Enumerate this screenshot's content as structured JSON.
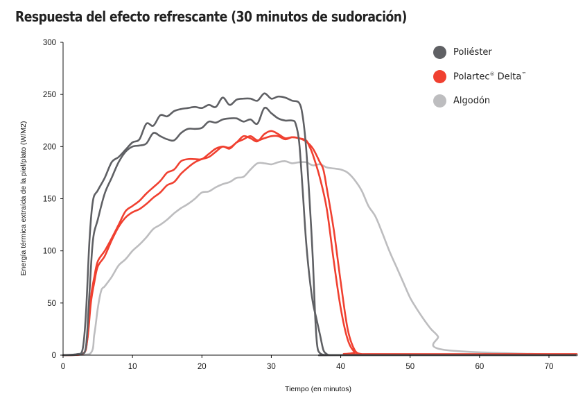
{
  "chart_data": {
    "type": "line",
    "title": "Respuesta del efecto refrescante (30 minutos de sudoración)",
    "xlabel": "Tiempo (en minutos)",
    "ylabel": "Energía térmica extraída de la piel/plato (W/M2)",
    "xlim": [
      0,
      74
    ],
    "ylim": [
      0,
      300
    ],
    "xticks": [
      "0",
      "10",
      "20",
      "30",
      "40",
      "50",
      "60",
      "70"
    ],
    "yticks": [
      "0",
      "50",
      "100",
      "150",
      "200",
      "250",
      "300"
    ],
    "legend_position": "top-right",
    "legend": [
      {
        "label": "Poliéster",
        "color": "#5f6064"
      },
      {
        "label": "Polartec",
        "sup1": "®",
        "label2": " Delta",
        "sup2": "™",
        "color": "#f04030"
      },
      {
        "label": "Algodón",
        "color": "#bdbdbf"
      }
    ],
    "series": [
      {
        "name": "Poliéster (1)",
        "color": "#5f6064",
        "x": [
          0,
          2,
          2.8,
          3.3,
          3.8,
          4.3,
          5,
          6,
          7,
          8,
          9,
          10,
          11,
          12,
          13,
          14,
          15,
          16,
          17,
          18,
          19,
          20,
          21,
          22,
          23,
          24,
          25,
          26,
          27,
          28,
          29,
          30,
          31,
          32,
          33,
          34,
          34.5,
          35,
          35.5,
          36,
          36.3,
          36.6,
          37,
          38,
          40,
          74
        ],
        "y": [
          0,
          1,
          5,
          40,
          110,
          148,
          158,
          170,
          185,
          190,
          197,
          204,
          207,
          222,
          220,
          230,
          229,
          234,
          236,
          237,
          238,
          237,
          240,
          238,
          247,
          240,
          245,
          246,
          246,
          244,
          251,
          246,
          248,
          247,
          244,
          242,
          230,
          200,
          150,
          90,
          40,
          10,
          2,
          0,
          0,
          0
        ]
      },
      {
        "name": "Poliéster (2)",
        "color": "#5f6064",
        "x": [
          0,
          2.5,
          3.3,
          3.8,
          4.3,
          5,
          6,
          7,
          8,
          9,
          10,
          11,
          12,
          13,
          14,
          15,
          16,
          17,
          18,
          19,
          20,
          21,
          22,
          23,
          24,
          25,
          26,
          27,
          28,
          29,
          30,
          31,
          32,
          33,
          33.5,
          34,
          34.5,
          35,
          35.5,
          36,
          36.5,
          37,
          37.5,
          38,
          38.5,
          40,
          74
        ],
        "y": [
          0,
          1,
          8,
          60,
          110,
          130,
          155,
          170,
          185,
          195,
          200,
          201,
          203,
          213,
          210,
          207,
          206,
          213,
          217,
          217,
          218,
          224,
          223,
          226,
          227,
          227,
          224,
          226,
          222,
          237,
          232,
          227,
          225,
          225,
          222,
          205,
          160,
          110,
          75,
          50,
          35,
          20,
          5,
          1,
          0,
          0,
          0
        ]
      },
      {
        "name": "Polartec Delta (1)",
        "color": "#f04030",
        "x": [
          0,
          2.8,
          3.5,
          4,
          4.5,
          5,
          6,
          7,
          8,
          9,
          10,
          11,
          12,
          13,
          14,
          15,
          16,
          17,
          18,
          19,
          20,
          21,
          22,
          23,
          24,
          25,
          26,
          27,
          28,
          29,
          30,
          31,
          32,
          33,
          34,
          35,
          35.5,
          36,
          37,
          38,
          39,
          40,
          41,
          42,
          43,
          74
        ],
        "y": [
          0,
          1,
          15,
          55,
          75,
          90,
          100,
          112,
          125,
          138,
          143,
          148,
          155,
          161,
          167,
          175,
          178,
          186,
          188,
          188,
          188,
          193,
          198,
          200,
          199,
          204,
          210,
          208,
          205,
          212,
          215,
          212,
          208,
          209,
          208,
          206,
          200,
          192,
          170,
          140,
          90,
          45,
          15,
          3,
          1,
          1
        ]
      },
      {
        "name": "Polartec Delta (2)",
        "color": "#f04030",
        "x": [
          0,
          2.8,
          3.5,
          4,
          4.5,
          5,
          6,
          7,
          8,
          9,
          10,
          11,
          12,
          13,
          14,
          15,
          16,
          17,
          18,
          19,
          20,
          21,
          22,
          23,
          24,
          25,
          26,
          27,
          28,
          29,
          30,
          31,
          32,
          33,
          34,
          35,
          36,
          37,
          37.5,
          38,
          39,
          40,
          41,
          42,
          43,
          44,
          74
        ],
        "y": [
          0,
          1,
          15,
          50,
          70,
          85,
          95,
          110,
          123,
          132,
          137,
          140,
          145,
          151,
          156,
          163,
          166,
          174,
          180,
          185,
          188,
          190,
          195,
          200,
          198,
          204,
          207,
          210,
          206,
          208,
          210,
          210,
          207,
          209,
          208,
          205,
          198,
          185,
          178,
          160,
          120,
          70,
          25,
          5,
          1,
          1,
          1
        ]
      },
      {
        "name": "Algodón",
        "color": "#bdbdbf",
        "x": [
          0,
          3.8,
          4.5,
          5,
          5.5,
          6,
          7,
          8,
          9,
          10,
          11,
          12,
          13,
          14,
          15,
          16,
          17,
          18,
          19,
          20,
          21,
          22,
          23,
          24,
          25,
          26,
          27,
          28,
          29,
          30,
          31,
          32,
          33,
          34,
          35,
          36,
          37,
          38,
          39,
          40,
          41,
          42,
          43,
          44,
          45,
          46,
          47,
          48,
          49,
          50,
          51,
          52,
          53,
          54,
          55,
          74
        ],
        "y": [
          0,
          1,
          20,
          45,
          62,
          66,
          75,
          86,
          92,
          100,
          106,
          113,
          121,
          125,
          130,
          136,
          141,
          145,
          150,
          156,
          157,
          161,
          164,
          166,
          170,
          171,
          178,
          184,
          184,
          183,
          185,
          186,
          184,
          185,
          185,
          182,
          183,
          180,
          179,
          178,
          175,
          168,
          158,
          143,
          133,
          117,
          100,
          85,
          70,
          55,
          44,
          34,
          25,
          18,
          5,
          0
        ]
      }
    ]
  }
}
